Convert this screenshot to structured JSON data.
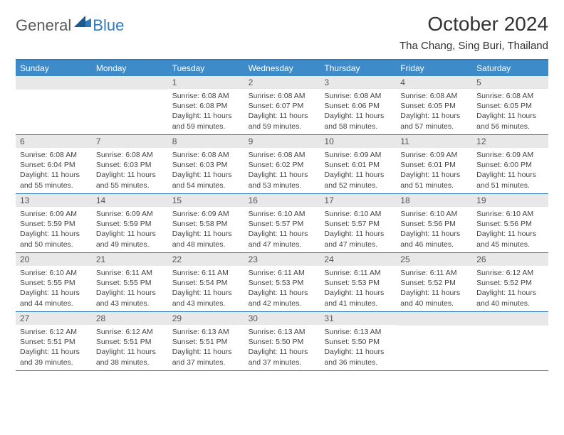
{
  "logo": {
    "general": "General",
    "blue": "Blue"
  },
  "title": "October 2024",
  "location": "Tha Chang, Sing Buri, Thailand",
  "weekdays": [
    "Sunday",
    "Monday",
    "Tuesday",
    "Wednesday",
    "Thursday",
    "Friday",
    "Saturday"
  ],
  "blank_cells_before_first_day": 2,
  "colors": {
    "header_bar": "#3d8bc9",
    "border": "#2f7bbf",
    "day_num_bg": "#e8e8e8",
    "text": "#333333",
    "logo_gray": "#5a5a5a",
    "logo_blue": "#2f7bbf"
  },
  "days": [
    {
      "n": 1,
      "sunrise": "6:08 AM",
      "sunset": "6:08 PM",
      "daylight": "11 hours and 59 minutes."
    },
    {
      "n": 2,
      "sunrise": "6:08 AM",
      "sunset": "6:07 PM",
      "daylight": "11 hours and 59 minutes."
    },
    {
      "n": 3,
      "sunrise": "6:08 AM",
      "sunset": "6:06 PM",
      "daylight": "11 hours and 58 minutes."
    },
    {
      "n": 4,
      "sunrise": "6:08 AM",
      "sunset": "6:05 PM",
      "daylight": "11 hours and 57 minutes."
    },
    {
      "n": 5,
      "sunrise": "6:08 AM",
      "sunset": "6:05 PM",
      "daylight": "11 hours and 56 minutes."
    },
    {
      "n": 6,
      "sunrise": "6:08 AM",
      "sunset": "6:04 PM",
      "daylight": "11 hours and 55 minutes."
    },
    {
      "n": 7,
      "sunrise": "6:08 AM",
      "sunset": "6:03 PM",
      "daylight": "11 hours and 55 minutes."
    },
    {
      "n": 8,
      "sunrise": "6:08 AM",
      "sunset": "6:03 PM",
      "daylight": "11 hours and 54 minutes."
    },
    {
      "n": 9,
      "sunrise": "6:08 AM",
      "sunset": "6:02 PM",
      "daylight": "11 hours and 53 minutes."
    },
    {
      "n": 10,
      "sunrise": "6:09 AM",
      "sunset": "6:01 PM",
      "daylight": "11 hours and 52 minutes."
    },
    {
      "n": 11,
      "sunrise": "6:09 AM",
      "sunset": "6:01 PM",
      "daylight": "11 hours and 51 minutes."
    },
    {
      "n": 12,
      "sunrise": "6:09 AM",
      "sunset": "6:00 PM",
      "daylight": "11 hours and 51 minutes."
    },
    {
      "n": 13,
      "sunrise": "6:09 AM",
      "sunset": "5:59 PM",
      "daylight": "11 hours and 50 minutes."
    },
    {
      "n": 14,
      "sunrise": "6:09 AM",
      "sunset": "5:59 PM",
      "daylight": "11 hours and 49 minutes."
    },
    {
      "n": 15,
      "sunrise": "6:09 AM",
      "sunset": "5:58 PM",
      "daylight": "11 hours and 48 minutes."
    },
    {
      "n": 16,
      "sunrise": "6:10 AM",
      "sunset": "5:57 PM",
      "daylight": "11 hours and 47 minutes."
    },
    {
      "n": 17,
      "sunrise": "6:10 AM",
      "sunset": "5:57 PM",
      "daylight": "11 hours and 47 minutes."
    },
    {
      "n": 18,
      "sunrise": "6:10 AM",
      "sunset": "5:56 PM",
      "daylight": "11 hours and 46 minutes."
    },
    {
      "n": 19,
      "sunrise": "6:10 AM",
      "sunset": "5:56 PM",
      "daylight": "11 hours and 45 minutes."
    },
    {
      "n": 20,
      "sunrise": "6:10 AM",
      "sunset": "5:55 PM",
      "daylight": "11 hours and 44 minutes."
    },
    {
      "n": 21,
      "sunrise": "6:11 AM",
      "sunset": "5:55 PM",
      "daylight": "11 hours and 43 minutes."
    },
    {
      "n": 22,
      "sunrise": "6:11 AM",
      "sunset": "5:54 PM",
      "daylight": "11 hours and 43 minutes."
    },
    {
      "n": 23,
      "sunrise": "6:11 AM",
      "sunset": "5:53 PM",
      "daylight": "11 hours and 42 minutes."
    },
    {
      "n": 24,
      "sunrise": "6:11 AM",
      "sunset": "5:53 PM",
      "daylight": "11 hours and 41 minutes."
    },
    {
      "n": 25,
      "sunrise": "6:11 AM",
      "sunset": "5:52 PM",
      "daylight": "11 hours and 40 minutes."
    },
    {
      "n": 26,
      "sunrise": "6:12 AM",
      "sunset": "5:52 PM",
      "daylight": "11 hours and 40 minutes."
    },
    {
      "n": 27,
      "sunrise": "6:12 AM",
      "sunset": "5:51 PM",
      "daylight": "11 hours and 39 minutes."
    },
    {
      "n": 28,
      "sunrise": "6:12 AM",
      "sunset": "5:51 PM",
      "daylight": "11 hours and 38 minutes."
    },
    {
      "n": 29,
      "sunrise": "6:13 AM",
      "sunset": "5:51 PM",
      "daylight": "11 hours and 37 minutes."
    },
    {
      "n": 30,
      "sunrise": "6:13 AM",
      "sunset": "5:50 PM",
      "daylight": "11 hours and 37 minutes."
    },
    {
      "n": 31,
      "sunrise": "6:13 AM",
      "sunset": "5:50 PM",
      "daylight": "11 hours and 36 minutes."
    }
  ],
  "labels": {
    "sunrise": "Sunrise:",
    "sunset": "Sunset:",
    "daylight": "Daylight:"
  }
}
